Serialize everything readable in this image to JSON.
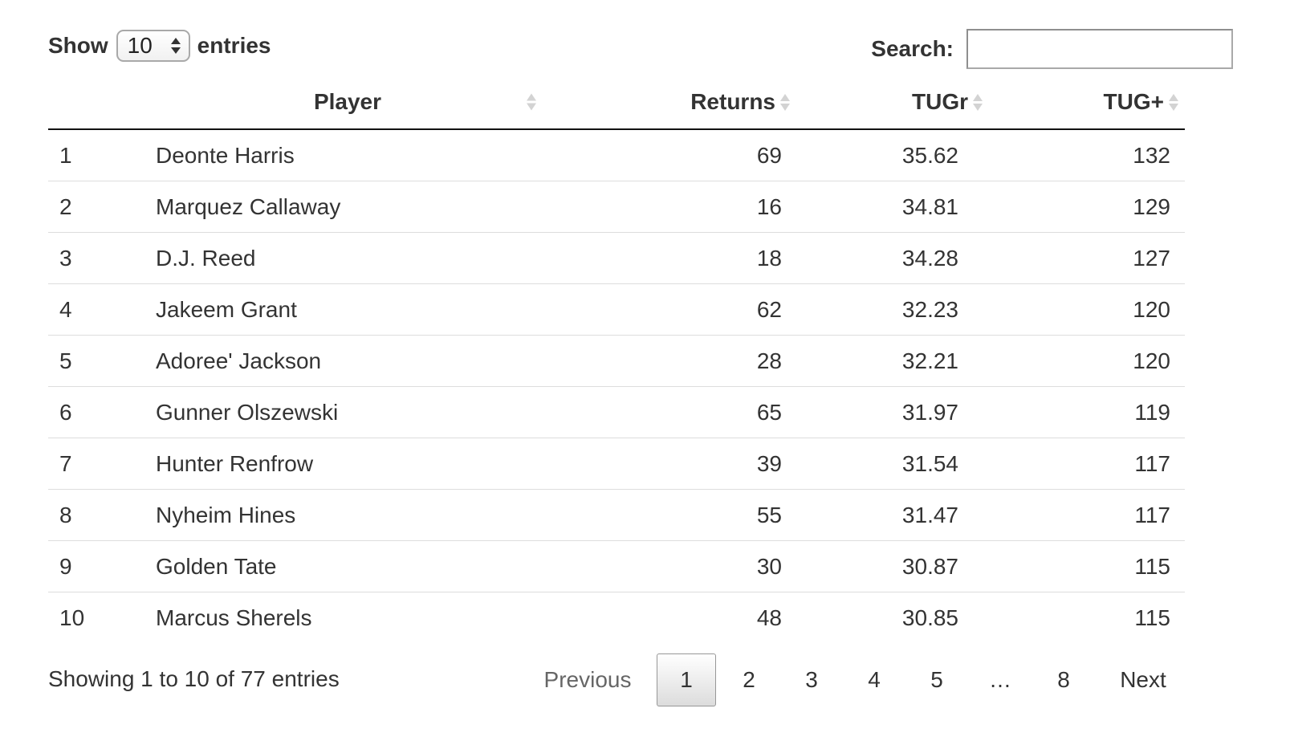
{
  "length_control": {
    "show_label": "Show",
    "selected_value": "10",
    "entries_label": "entries"
  },
  "search": {
    "label": "Search:",
    "value": "",
    "placeholder": ""
  },
  "table": {
    "columns": [
      {
        "key": "rank",
        "label": ""
      },
      {
        "key": "player",
        "label": "Player"
      },
      {
        "key": "returns",
        "label": "Returns"
      },
      {
        "key": "tugr",
        "label": "TUGr"
      },
      {
        "key": "tugp",
        "label": "TUG+"
      }
    ],
    "rows": [
      {
        "rank": "1",
        "player": "Deonte Harris",
        "returns": "69",
        "tugr": "35.62",
        "tugp": "132"
      },
      {
        "rank": "2",
        "player": "Marquez Callaway",
        "returns": "16",
        "tugr": "34.81",
        "tugp": "129"
      },
      {
        "rank": "3",
        "player": "D.J. Reed",
        "returns": "18",
        "tugr": "34.28",
        "tugp": "127"
      },
      {
        "rank": "4",
        "player": "Jakeem Grant",
        "returns": "62",
        "tugr": "32.23",
        "tugp": "120"
      },
      {
        "rank": "5",
        "player": "Adoree' Jackson",
        "returns": "28",
        "tugr": "32.21",
        "tugp": "120"
      },
      {
        "rank": "6",
        "player": "Gunner Olszewski",
        "returns": "65",
        "tugr": "31.97",
        "tugp": "119"
      },
      {
        "rank": "7",
        "player": "Hunter Renfrow",
        "returns": "39",
        "tugr": "31.54",
        "tugp": "117"
      },
      {
        "rank": "8",
        "player": "Nyheim Hines",
        "returns": "55",
        "tugr": "31.47",
        "tugp": "117"
      },
      {
        "rank": "9",
        "player": "Golden Tate",
        "returns": "30",
        "tugr": "30.87",
        "tugp": "115"
      },
      {
        "rank": "10",
        "player": "Marcus Sherels",
        "returns": "48",
        "tugr": "30.85",
        "tugp": "115"
      }
    ]
  },
  "footer": {
    "info": "Showing 1 to 10 of 77 entries",
    "pagination": {
      "previous": "Previous",
      "pages": [
        "1",
        "2",
        "3",
        "4",
        "5"
      ],
      "ellipsis": "…",
      "last_page": "8",
      "next": "Next",
      "current": "1"
    }
  },
  "icons": {
    "select_arrows": "updown-arrows-icon",
    "sort": "sort-both-icon"
  },
  "colors": {
    "text": "#333333",
    "header_rule": "#111111",
    "row_rule": "#dddddd",
    "sort_icon": "#d3d3d3"
  }
}
